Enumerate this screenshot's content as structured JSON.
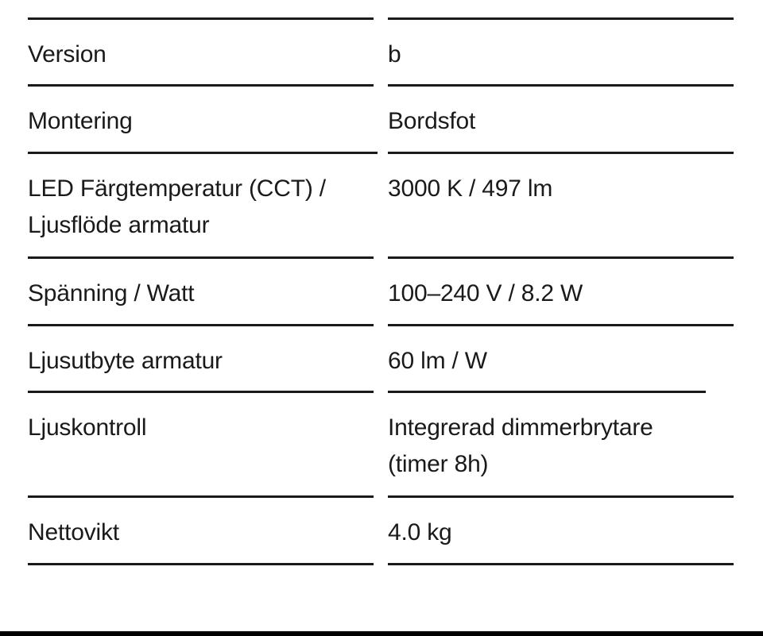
{
  "rows": [
    {
      "label": "Version",
      "value": "b"
    },
    {
      "label": "Montering",
      "value": "Bordsfot"
    },
    {
      "label": "LED Färgtemperatur (CCT) / Ljusflöde armatur",
      "value": "3000 K / 497 lm"
    },
    {
      "label": "Spänning / Watt",
      "value": "100–240 V / 8.2 W"
    },
    {
      "label": "Ljusutbyte armatur",
      "value": "60 lm / W"
    },
    {
      "label": "Ljuskontroll",
      "value": "Integrerad dimmerbrytare (timer 8h)"
    },
    {
      "label": "Nettovikt",
      "value": "4.0 kg"
    }
  ]
}
